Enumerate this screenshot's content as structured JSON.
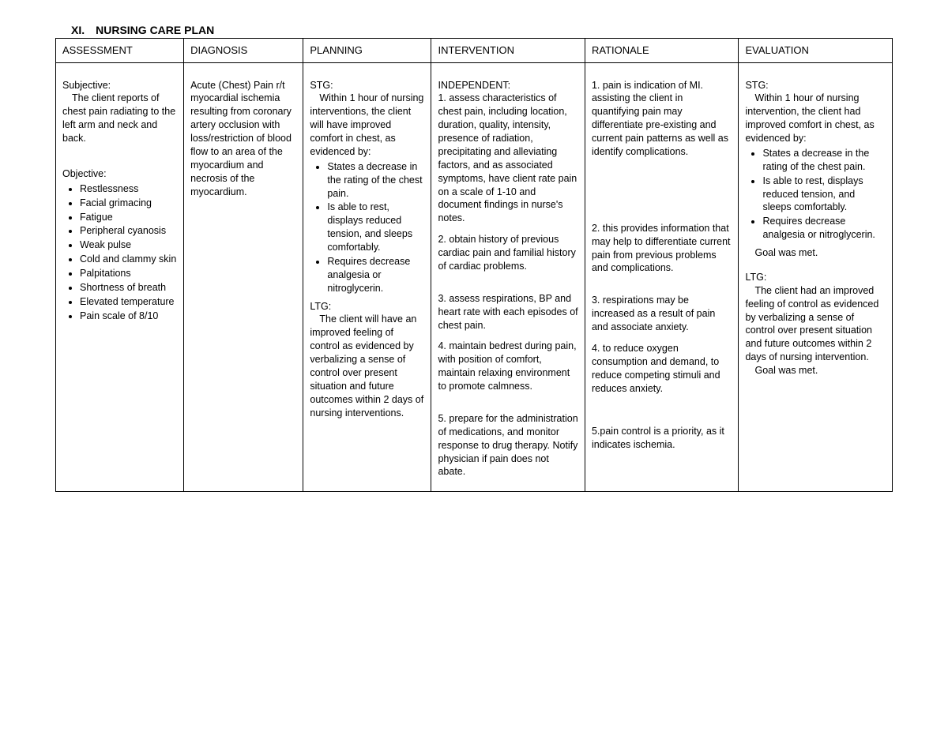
{
  "title": "XI. NURSING CARE PLAN",
  "headers": {
    "assessment": "ASSESSMENT",
    "diagnosis": "DIAGNOSIS",
    "planning": "PLANNING",
    "intervention": "INTERVENTION",
    "rationale": "RATIONALE",
    "evaluation": "EVALUATION"
  },
  "assessment": {
    "subjective_label": "Subjective:",
    "subjective_text": "The client reports of chest pain radiating to the left arm and neck and back.",
    "objective_label": "Objective:",
    "objective_items": [
      "Restlessness",
      "Facial grimacing",
      "Fatigue",
      "Peripheral cyanosis",
      "Weak pulse",
      "Cold and clammy skin",
      "Palpitations",
      "Shortness of breath",
      "Elevated temperature",
      "Pain scale of 8/10"
    ]
  },
  "diagnosis": {
    "text": "Acute (Chest) Pain r/t myocardial ischemia resulting from coronary artery occlusion with loss/restriction of blood flow to an area of the myocardium and necrosis of the myocardium."
  },
  "planning": {
    "stg_label": "STG:",
    "stg_intro": "Within 1 hour of nursing interventions, the client will have improved comfort in chest, as evidenced by:",
    "stg_items": [
      "States a decrease in the rating of the chest pain.",
      "Is able to rest, displays reduced tension, and sleeps comfortably.",
      "Requires decrease analgesia or nitroglycerin."
    ],
    "ltg_label": "LTG:",
    "ltg_text": "The client will have an improved feeling of control as evidenced by verbalizing a sense of control over present situation and future outcomes within 2 days of nursing interventions."
  },
  "intervention": {
    "indep_label": "INDEPENDENT:",
    "items": [
      "1. assess characteristics of chest pain, including location, duration, quality, intensity, presence of radiation, precipitating and alleviating factors, and as associated symptoms, have client rate pain on a scale of 1-10 and document findings in nurse's notes.",
      "2. obtain history of previous cardiac pain and familial history of cardiac problems.",
      "3. assess respirations, BP and heart rate with each episodes of chest pain.",
      "4. maintain bedrest during pain, with position of comfort, maintain relaxing environment to promote calmness.",
      "5. prepare for the administration of medications, and monitor response to drug therapy. Notify physician if pain does not abate."
    ]
  },
  "rationale": {
    "items": [
      "1. pain is indication of MI. assisting the client in quantifying pain may differentiate pre-existing and current pain patterns as well as identify complications.",
      "2. this provides information that may help to differentiate current pain from previous problems and complications.",
      "3. respirations may be increased as a result of pain and associate anxiety.",
      "4. to reduce oxygen consumption and demand, to reduce competing stimuli and reduces anxiety.",
      "5.pain control is a priority, as it indicates ischemia."
    ]
  },
  "evaluation": {
    "stg_label": "STG:",
    "stg_intro": "Within 1 hour of nursing intervention, the client had improved comfort in chest, as evidenced by:",
    "stg_items": [
      "States a decrease in the rating of the chest pain.",
      "Is able to rest, displays reduced tension, and sleeps comfortably.",
      "Requires decrease analgesia or nitroglycerin."
    ],
    "stg_goal": "Goal was met.",
    "ltg_label": "LTG:",
    "ltg_text": "The client had an improved feeling of control as evidenced by verbalizing a sense of control over present situation and future outcomes within 2 days of nursing intervention.",
    "ltg_goal": "Goal was met."
  }
}
